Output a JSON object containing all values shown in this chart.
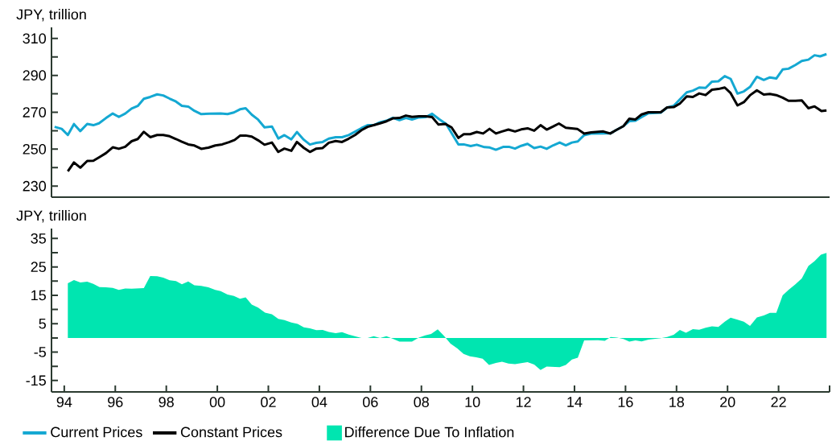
{
  "chart_data": [
    {
      "type": "line",
      "ylabel": "JPY, trillion",
      "xlim": [
        1993.5,
        2024
      ],
      "ylim": [
        224,
        316
      ],
      "yticks": [
        230,
        {
          "value": 240,
          "label": null
        },
        250,
        {
          "value": 260,
          "label": null
        },
        270,
        {
          "value": 280,
          "label": null
        },
        290,
        {
          "value": 300,
          "label": null
        },
        310
      ],
      "tick_labels": "y",
      "legend": "bottom",
      "series": [
        {
          "name": "Current Prices",
          "color": "#14a8d2",
          "x": [
            1993.62,
            1993.9,
            1994.14,
            1994.38,
            1994.63,
            1994.9,
            1995.14,
            1995.36,
            1995.63,
            1995.9,
            1996.14,
            1996.39,
            1996.64,
            1996.88,
            1997.12,
            1997.37,
            1997.64,
            1997.88,
            1998.13,
            1998.38,
            1998.61,
            1998.86,
            1999.1,
            1999.37,
            1999.7,
            2000.13,
            2000.4,
            2000.65,
            2000.89,
            2001.11,
            2001.35,
            2001.6,
            2001.85,
            2002.14,
            2002.39,
            2002.63,
            2002.9,
            2003.12,
            2003.39,
            2003.63,
            2003.88,
            2004.13,
            2004.37,
            2004.64,
            2004.89,
            2005.15,
            2005.4,
            2005.65,
            2005.89,
            2006.13,
            2006.38,
            2006.63,
            2006.88,
            2007.14,
            2007.39,
            2007.63,
            2007.9,
            2008.17,
            2008.42,
            2008.7,
            2008.97,
            2009.18,
            2009.45,
            2009.66,
            2009.93,
            2010.17,
            2010.47,
            2010.68,
            2010.92,
            2011.2,
            2011.43,
            2011.67,
            2011.91,
            2012.16,
            2012.42,
            2012.67,
            2012.91,
            2013.17,
            2013.42,
            2013.66,
            2013.9,
            2014.13,
            2014.38,
            2014.65,
            2015.19,
            2015.4,
            2015.67,
            2015.92,
            2016.15,
            2016.39,
            2016.63,
            2016.9,
            2017.38,
            2017.63,
            2017.89,
            2018.13,
            2018.4,
            2018.64,
            2018.89,
            2019.14,
            2019.39,
            2019.64,
            2019.89,
            2020.12,
            2020.39,
            2020.64,
            2020.88,
            2021.15,
            2021.42,
            2021.66,
            2021.91,
            2022.16,
            2022.39,
            2022.66,
            2022.91,
            2023.17,
            2023.41,
            2023.63,
            2023.88
          ],
          "values": [
            262.1,
            261,
            257.7,
            263.6,
            259.8,
            263.7,
            263,
            264,
            266.8,
            269.3,
            267.5,
            269.3,
            272,
            273.4,
            277.3,
            278.3,
            279.7,
            279.1,
            277.4,
            275.8,
            273.5,
            273.1,
            270.8,
            269,
            269.2,
            269.3,
            269,
            269.9,
            271.6,
            272.2,
            268.7,
            266,
            261.8,
            262.3,
            255.8,
            257.6,
            255.3,
            259.3,
            255.1,
            252.5,
            253.4,
            253.9,
            255.7,
            256.5,
            256.5,
            257.6,
            259.5,
            261.4,
            263,
            263,
            264.6,
            265.4,
            267,
            265.7,
            266.9,
            266.1,
            267.2,
            267.4,
            269.2,
            266.2,
            263.7,
            258.8,
            252.6,
            252.6,
            251.7,
            252.4,
            251.1,
            250.9,
            249.7,
            251.2,
            251.3,
            250.3,
            251.8,
            252.9,
            250.6,
            251.4,
            250.2,
            252.1,
            253.6,
            252.1,
            253.6,
            254.2,
            257.6,
            258.4,
            258.5,
            258.5,
            260.6,
            262.5,
            265.2,
            265.4,
            267.4,
            269.5,
            269.8,
            272.5,
            273.5,
            277,
            280.8,
            281.7,
            283.4,
            283.2,
            286.6,
            286.8,
            289.6,
            288.1,
            280.1,
            281.3,
            283.7,
            289.2,
            287.5,
            288.9,
            288.3,
            293.2,
            293.6,
            295.6,
            297.8,
            298.5,
            300.9,
            300.3,
            301.5
          ]
        },
        {
          "name": "Constant Prices",
          "color": "#000000",
          "x": [
            1994.14,
            1994.38,
            1994.63,
            1994.9,
            1995.14,
            1995.38,
            1995.63,
            1995.9,
            1996.14,
            1996.39,
            1996.64,
            1996.88,
            1997.12,
            1997.37,
            1997.64,
            1997.88,
            1998.13,
            1998.38,
            1998.61,
            1998.86,
            1999.1,
            1999.37,
            1999.65,
            1999.92,
            2000.19,
            2000.46,
            2000.68,
            2000.89,
            2001.11,
            2001.35,
            2001.6,
            2001.85,
            2002.14,
            2002.39,
            2002.63,
            2002.9,
            2003.12,
            2003.39,
            2003.63,
            2003.88,
            2004.13,
            2004.37,
            2004.64,
            2004.89,
            2005.15,
            2005.4,
            2005.65,
            2005.89,
            2006.13,
            2006.38,
            2006.63,
            2006.88,
            2007.14,
            2007.39,
            2007.63,
            2007.9,
            2008.17,
            2008.42,
            2008.67,
            2008.94,
            2009.18,
            2009.45,
            2009.66,
            2009.91,
            2010.17,
            2010.42,
            2010.67,
            2010.92,
            2011.16,
            2011.41,
            2011.67,
            2011.91,
            2012.16,
            2012.42,
            2012.67,
            2012.91,
            2013.15,
            2013.39,
            2013.66,
            2014.11,
            2014.38,
            2014.65,
            2015.13,
            2015.4,
            2015.67,
            2015.92,
            2016.15,
            2016.39,
            2016.63,
            2016.9,
            2017.38,
            2017.63,
            2017.89,
            2018.13,
            2018.4,
            2018.64,
            2018.89,
            2019.14,
            2019.39,
            2019.64,
            2019.89,
            2020.12,
            2020.39,
            2020.64,
            2020.88,
            2021.15,
            2021.42,
            2021.66,
            2021.91,
            2022.16,
            2022.39,
            2022.66,
            2022.91,
            2023.17,
            2023.41,
            2023.68,
            2023.88
          ],
          "values": [
            238,
            242.8,
            240,
            243.6,
            243.7,
            245.7,
            247.8,
            251,
            250.2,
            251.3,
            254.3,
            255.5,
            259.4,
            256.5,
            257.7,
            257.7,
            257,
            255.5,
            254,
            252.6,
            252,
            250.2,
            250.8,
            252,
            252.6,
            253.8,
            255,
            257.3,
            257.4,
            256.8,
            254.8,
            252.4,
            253.6,
            248.5,
            250.3,
            249.1,
            253.9,
            250.7,
            248.5,
            250.3,
            250.6,
            253.5,
            254.4,
            253.9,
            255.7,
            257.7,
            260.3,
            262.1,
            263,
            264,
            265.1,
            266.7,
            266.9,
            268.2,
            267.5,
            267.8,
            267.8,
            267.4,
            263.3,
            263.7,
            261.8,
            256.1,
            258.1,
            258.1,
            259.3,
            258.5,
            261,
            258.5,
            259.6,
            260.6,
            259.6,
            260.7,
            261.3,
            260,
            263,
            260.6,
            262.2,
            263.9,
            261.6,
            261,
            258.4,
            259.1,
            259.6,
            258.5,
            260.6,
            262.5,
            266.5,
            266.1,
            268.8,
            270,
            270,
            272.6,
            272.8,
            274.7,
            278.6,
            278.3,
            280.2,
            279.3,
            282.2,
            282.6,
            283.4,
            280.4,
            273.7,
            275.5,
            279.2,
            281.9,
            279.6,
            279.9,
            279.3,
            277.9,
            276.2,
            276.2,
            276.4,
            272.2,
            273.2,
            270.7,
            271
          ]
        }
      ]
    },
    {
      "type": "area",
      "ylabel": "JPY, trillion",
      "xlim": [
        1993.5,
        2024
      ],
      "ylim": [
        -19,
        38.5
      ],
      "xticks": [
        {
          "value": 1994,
          "label": "94"
        },
        {
          "value": 1996,
          "label": "96"
        },
        {
          "value": 1998,
          "label": "98"
        },
        {
          "value": 2000,
          "label": "00"
        },
        {
          "value": 2002,
          "label": "02"
        },
        {
          "value": 2004,
          "label": "04"
        },
        {
          "value": 2006,
          "label": "06"
        },
        {
          "value": 2008,
          "label": "08"
        },
        {
          "value": 2010,
          "label": "10"
        },
        {
          "value": 2012,
          "label": "12"
        },
        {
          "value": 2014,
          "label": "14"
        },
        {
          "value": 2016,
          "label": "16"
        },
        {
          "value": 2018,
          "label": "18"
        },
        {
          "value": 2020,
          "label": "20"
        },
        {
          "value": 2022,
          "label": "22"
        },
        {
          "value": 2024,
          "label": null
        }
      ],
      "yticks": [
        -15,
        {
          "value": -10,
          "label": null
        },
        -5,
        {
          "value": 0,
          "label": null
        },
        5,
        {
          "value": 10,
          "label": null
        },
        15,
        {
          "value": 20,
          "label": null
        },
        25,
        {
          "value": 30,
          "label": null
        },
        35
      ],
      "legend": "bottom",
      "series": [
        {
          "name": "Difference Due To Inflation",
          "color": "#00e5b0",
          "x": [
            1994.14,
            1994.38,
            1994.63,
            1994.9,
            1995.14,
            1995.38,
            1995.63,
            1995.9,
            1996.14,
            1996.39,
            1996.64,
            1997.12,
            1997.37,
            1997.64,
            1997.88,
            1998.13,
            1998.38,
            1998.61,
            1998.86,
            1999.1,
            1999.37,
            1999.65,
            1999.92,
            2000.13,
            2000.4,
            2000.65,
            2000.89,
            2001.11,
            2001.35,
            2001.6,
            2001.87,
            2002.14,
            2002.39,
            2002.63,
            2002.9,
            2003.15,
            2003.39,
            2003.63,
            2003.88,
            2004.13,
            2004.37,
            2004.64,
            2004.89,
            2005.15,
            2005.4,
            2005.65,
            2005.89,
            2006.13,
            2006.38,
            2006.63,
            2006.88,
            2007.14,
            2007.63,
            2007.9,
            2008.15,
            2008.38,
            2008.64,
            2008.89,
            2009.14,
            2009.41,
            2009.65,
            2009.9,
            2010.15,
            2010.4,
            2010.65,
            2010.92,
            2011.16,
            2011.41,
            2011.67,
            2011.91,
            2012.16,
            2012.42,
            2012.67,
            2012.91,
            2013.42,
            2013.66,
            2013.9,
            2014.13,
            2014.38,
            2014.92,
            2015.19,
            2015.42,
            2015.67,
            2015.92,
            2016.15,
            2016.39,
            2016.63,
            2016.9,
            2017.38,
            2017.63,
            2017.89,
            2018.13,
            2018.37,
            2018.64,
            2018.89,
            2019.14,
            2019.39,
            2019.64,
            2019.89,
            2020.12,
            2020.39,
            2020.64,
            2020.88,
            2021.15,
            2021.42,
            2021.66,
            2021.91,
            2022.16,
            2022.39,
            2022.66,
            2022.91,
            2023.17,
            2023.41,
            2023.66,
            2023.88
          ],
          "values": [
            19.2,
            20.4,
            19.5,
            19.8,
            19,
            17.9,
            17.8,
            17.6,
            16.9,
            17.4,
            17.3,
            17.5,
            21.8,
            21.7,
            21.2,
            20.3,
            20,
            18.9,
            19.9,
            18.5,
            18.3,
            17.8,
            16.9,
            16.5,
            15.3,
            14.8,
            13.8,
            14.3,
            11.7,
            10.7,
            8.9,
            8.3,
            6.7,
            6.3,
            5.4,
            4.9,
            3.7,
            3.4,
            2.7,
            2.8,
            2.1,
            1.7,
            2,
            1.2,
            0.6,
            0,
            0,
            0.6,
            0,
            0.6,
            -0.3,
            -1.3,
            -1.3,
            0.1,
            0.9,
            1.4,
            3,
            0.7,
            -2,
            -3.7,
            -5.6,
            -6.5,
            -6.8,
            -7.3,
            -9.5,
            -8.8,
            -8.4,
            -9,
            -9.2,
            -8.9,
            -8.5,
            -9.4,
            -11.3,
            -10.1,
            -10.3,
            -9.5,
            -7.6,
            -7,
            -0.9,
            -0.8,
            -1,
            0.3,
            0.1,
            -0.4,
            -1.3,
            -0.9,
            -1.2,
            -0.6,
            -0.1,
            0.3,
            1.1,
            2.8,
            1.8,
            3.1,
            2.9,
            3.6,
            4.1,
            3.9,
            5.7,
            7.1,
            6.4,
            5.7,
            4.2,
            7.2,
            7.9,
            8.8,
            8.8,
            15,
            16.9,
            18.9,
            20.9,
            25.3,
            27,
            29.3,
            29.9
          ]
        }
      ]
    }
  ]
}
